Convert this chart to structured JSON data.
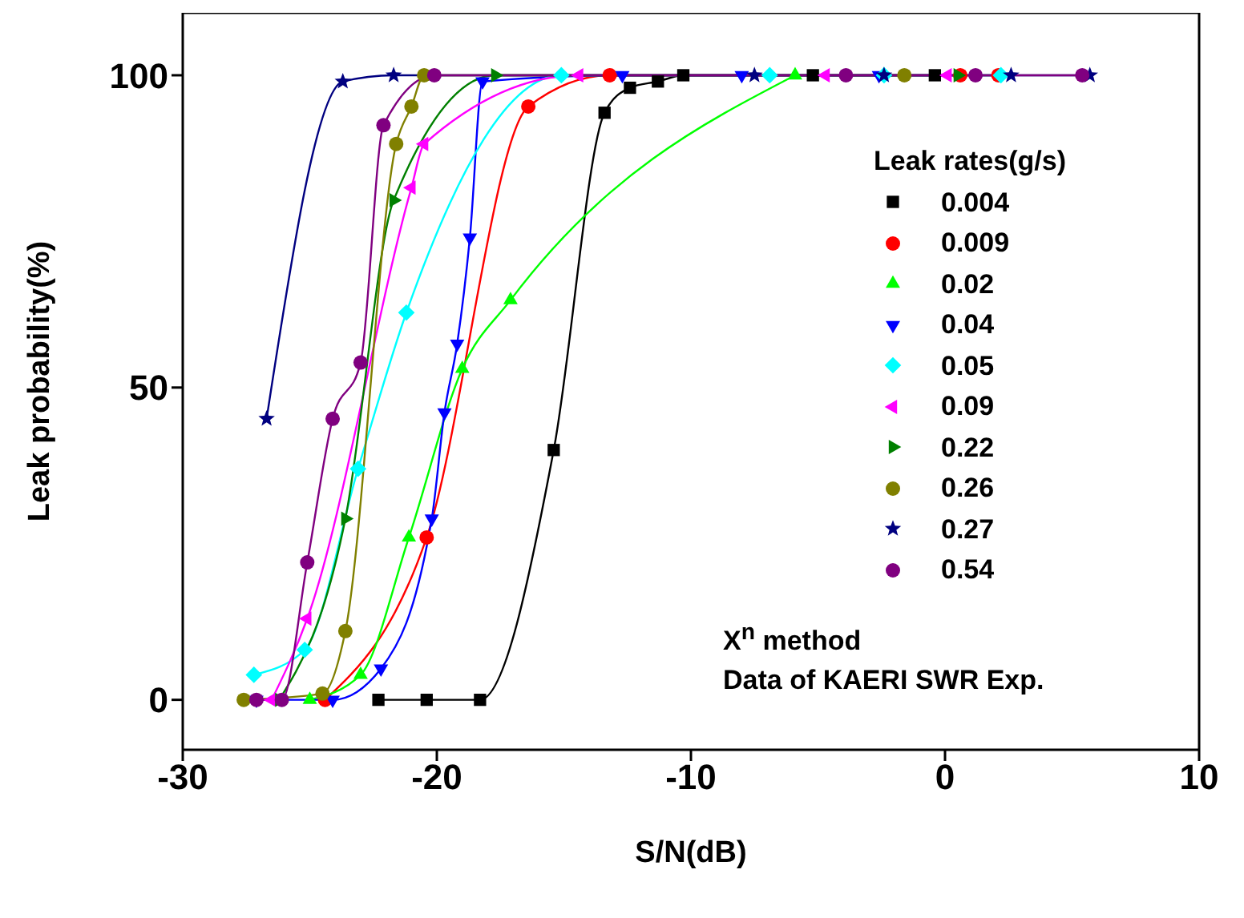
{
  "chart_data": {
    "type": "line",
    "xlabel": "S/N(dB)",
    "ylabel": "Leak probability(%)",
    "legend_title": "Leak rates(g/s)",
    "xlim": [
      -30,
      10
    ],
    "xticks": [
      -30,
      -20,
      -10,
      0,
      10
    ],
    "ylim": [
      -8,
      110
    ],
    "yticks": [
      0,
      50,
      100
    ],
    "legend": "right",
    "line_style": "solid",
    "annotations": [
      "X$^{n}$ method",
      "Data of KAERI SWR Exp."
    ],
    "series": [
      {
        "name": "0.004",
        "color": "#000000",
        "marker": "square",
        "x": [
          -22.3,
          -20.4,
          -18.3,
          -15.4,
          -13.4,
          -12.4,
          -11.3,
          -10.3,
          -5.2,
          -0.4
        ],
        "values": [
          0,
          0,
          0,
          40,
          94,
          98,
          99,
          100,
          100,
          100
        ]
      },
      {
        "name": "0.009",
        "color": "#ff0000",
        "marker": "circle",
        "x": [
          -24.4,
          -20.4,
          -16.4,
          -13.2,
          0.6,
          2.1
        ],
        "values": [
          0,
          26,
          95,
          100,
          100,
          100
        ]
      },
      {
        "name": "0.02",
        "color": "#00ff00",
        "marker": "triangle",
        "x": [
          -25.0,
          -23.0,
          -21.1,
          -19.0,
          -17.1,
          -5.9
        ],
        "values": [
          0,
          4,
          26,
          53,
          64,
          100
        ]
      },
      {
        "name": "0.04",
        "color": "#0000ff",
        "marker": "triangle_down",
        "x": [
          -27.1,
          -24.1,
          -22.2,
          -20.2,
          -19.7,
          -19.2,
          -18.7,
          -18.2,
          -12.7,
          -8.0,
          -2.6
        ],
        "values": [
          0,
          0,
          5,
          29,
          46,
          57,
          74,
          99,
          100,
          100,
          100
        ]
      },
      {
        "name": "0.05",
        "color": "#00ffff",
        "marker": "diamond",
        "x": [
          -27.2,
          -25.2,
          -23.1,
          -21.2,
          -15.1,
          -6.9,
          -2.4,
          2.2
        ],
        "values": [
          4,
          8,
          37,
          62,
          100,
          100,
          100,
          100
        ]
      },
      {
        "name": "0.09",
        "color": "#ff00ff",
        "marker": "triangle_left",
        "x": [
          -26.5,
          -25.1,
          -21.0,
          -20.5,
          -14.4,
          -4.7,
          0.1
        ],
        "values": [
          0,
          13,
          82,
          89,
          100,
          100,
          100
        ]
      },
      {
        "name": "0.22",
        "color": "#008000",
        "marker": "triangle_right",
        "x": [
          -26.2,
          -23.6,
          -21.7,
          -17.7,
          0.5
        ],
        "values": [
          0,
          29,
          80,
          100,
          100
        ]
      },
      {
        "name": "0.26",
        "color": "#808000",
        "marker": "circle",
        "x": [
          -27.6,
          -24.5,
          -23.6,
          -21.6,
          -21.0,
          -20.5,
          -1.6
        ],
        "values": [
          0,
          1,
          11,
          89,
          95,
          100,
          100
        ]
      },
      {
        "name": "0.27",
        "color": "#000080",
        "marker": "star",
        "x": [
          -26.7,
          -23.7,
          -21.7,
          -7.5,
          -2.4,
          2.6,
          5.7
        ],
        "values": [
          45,
          99,
          100,
          100,
          100,
          100,
          100
        ]
      },
      {
        "name": "0.54",
        "color": "#800080",
        "marker": "circle",
        "x": [
          -27.1,
          -26.1,
          -25.1,
          -24.1,
          -23.0,
          -22.1,
          -20.1,
          -3.9,
          1.2,
          5.4
        ],
        "values": [
          0,
          0,
          22,
          45,
          54,
          92,
          100,
          100,
          100,
          100
        ]
      }
    ]
  }
}
